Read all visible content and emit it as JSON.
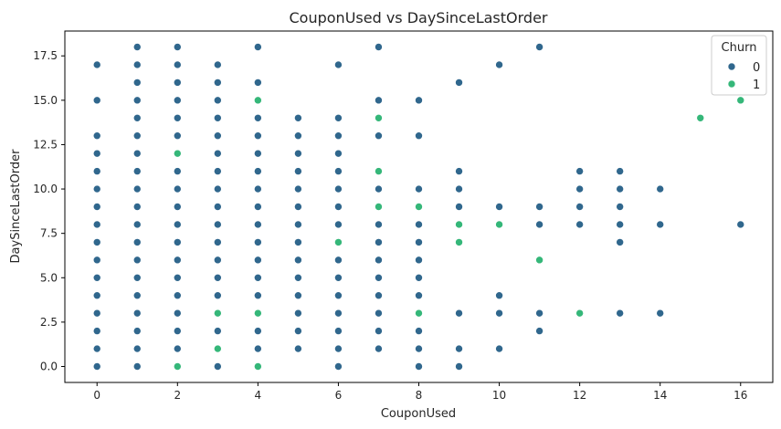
{
  "chart_data": {
    "type": "scatter",
    "title": "CouponUsed vs DaySinceLastOrder",
    "xlabel": "CouponUsed",
    "ylabel": "DaySinceLastOrder",
    "xlim": [
      -0.8,
      16.8
    ],
    "ylim": [
      -0.9,
      18.9
    ],
    "xticks": [
      0,
      2,
      4,
      6,
      8,
      10,
      12,
      14,
      16
    ],
    "yticks": [
      0.0,
      2.5,
      5.0,
      7.5,
      10.0,
      12.5,
      15.0,
      17.5
    ],
    "ytick_labels": [
      "0.0",
      "2.5",
      "5.0",
      "7.5",
      "10.0",
      "12.5",
      "15.0",
      "17.5"
    ],
    "grid": false,
    "legend": {
      "title": "Churn",
      "placement": "top-right"
    },
    "series": [
      {
        "name": "0",
        "color": "#30678d",
        "points": [
          [
            0,
            0
          ],
          [
            0,
            1
          ],
          [
            0,
            2
          ],
          [
            0,
            3
          ],
          [
            0,
            4
          ],
          [
            0,
            5
          ],
          [
            0,
            6
          ],
          [
            0,
            7
          ],
          [
            0,
            8
          ],
          [
            0,
            9
          ],
          [
            0,
            10
          ],
          [
            0,
            11
          ],
          [
            0,
            12
          ],
          [
            0,
            13
          ],
          [
            0,
            15
          ],
          [
            0,
            17
          ],
          [
            1,
            0
          ],
          [
            1,
            1
          ],
          [
            1,
            2
          ],
          [
            1,
            3
          ],
          [
            1,
            4
          ],
          [
            1,
            5
          ],
          [
            1,
            6
          ],
          [
            1,
            7
          ],
          [
            1,
            8
          ],
          [
            1,
            9
          ],
          [
            1,
            10
          ],
          [
            1,
            11
          ],
          [
            1,
            12
          ],
          [
            1,
            13
          ],
          [
            1,
            14
          ],
          [
            1,
            15
          ],
          [
            1,
            16
          ],
          [
            1,
            17
          ],
          [
            1,
            18
          ],
          [
            2,
            1
          ],
          [
            2,
            2
          ],
          [
            2,
            3
          ],
          [
            2,
            4
          ],
          [
            2,
            5
          ],
          [
            2,
            6
          ],
          [
            2,
            7
          ],
          [
            2,
            8
          ],
          [
            2,
            9
          ],
          [
            2,
            10
          ],
          [
            2,
            11
          ],
          [
            2,
            13
          ],
          [
            2,
            14
          ],
          [
            2,
            15
          ],
          [
            2,
            16
          ],
          [
            2,
            17
          ],
          [
            2,
            18
          ],
          [
            3,
            0
          ],
          [
            3,
            2
          ],
          [
            3,
            4
          ],
          [
            3,
            5
          ],
          [
            3,
            6
          ],
          [
            3,
            7
          ],
          [
            3,
            8
          ],
          [
            3,
            9
          ],
          [
            3,
            10
          ],
          [
            3,
            11
          ],
          [
            3,
            12
          ],
          [
            3,
            13
          ],
          [
            3,
            14
          ],
          [
            3,
            15
          ],
          [
            3,
            16
          ],
          [
            3,
            17
          ],
          [
            4,
            1
          ],
          [
            4,
            2
          ],
          [
            4,
            4
          ],
          [
            4,
            5
          ],
          [
            4,
            6
          ],
          [
            4,
            7
          ],
          [
            4,
            8
          ],
          [
            4,
            9
          ],
          [
            4,
            10
          ],
          [
            4,
            11
          ],
          [
            4,
            12
          ],
          [
            4,
            13
          ],
          [
            4,
            14
          ],
          [
            4,
            16
          ],
          [
            4,
            18
          ],
          [
            5,
            1
          ],
          [
            5,
            2
          ],
          [
            5,
            3
          ],
          [
            5,
            4
          ],
          [
            5,
            5
          ],
          [
            5,
            6
          ],
          [
            5,
            7
          ],
          [
            5,
            8
          ],
          [
            5,
            9
          ],
          [
            5,
            10
          ],
          [
            5,
            11
          ],
          [
            5,
            12
          ],
          [
            5,
            13
          ],
          [
            5,
            14
          ],
          [
            6,
            0
          ],
          [
            6,
            1
          ],
          [
            6,
            2
          ],
          [
            6,
            3
          ],
          [
            6,
            4
          ],
          [
            6,
            5
          ],
          [
            6,
            6
          ],
          [
            6,
            8
          ],
          [
            6,
            9
          ],
          [
            6,
            10
          ],
          [
            6,
            11
          ],
          [
            6,
            12
          ],
          [
            6,
            13
          ],
          [
            6,
            14
          ],
          [
            6,
            17
          ],
          [
            7,
            1
          ],
          [
            7,
            2
          ],
          [
            7,
            3
          ],
          [
            7,
            4
          ],
          [
            7,
            5
          ],
          [
            7,
            6
          ],
          [
            7,
            7
          ],
          [
            7,
            8
          ],
          [
            7,
            10
          ],
          [
            7,
            13
          ],
          [
            7,
            15
          ],
          [
            7,
            18
          ],
          [
            8,
            0
          ],
          [
            8,
            1
          ],
          [
            8,
            2
          ],
          [
            8,
            4
          ],
          [
            8,
            5
          ],
          [
            8,
            6
          ],
          [
            8,
            7
          ],
          [
            8,
            8
          ],
          [
            8,
            10
          ],
          [
            8,
            13
          ],
          [
            8,
            15
          ],
          [
            9,
            0
          ],
          [
            9,
            1
          ],
          [
            9,
            3
          ],
          [
            9,
            9
          ],
          [
            9,
            10
          ],
          [
            9,
            11
          ],
          [
            9,
            16
          ],
          [
            10,
            1
          ],
          [
            10,
            3
          ],
          [
            10,
            4
          ],
          [
            10,
            9
          ],
          [
            10,
            17
          ],
          [
            11,
            2
          ],
          [
            11,
            3
          ],
          [
            11,
            8
          ],
          [
            11,
            9
          ],
          [
            11,
            18
          ],
          [
            12,
            8
          ],
          [
            12,
            9
          ],
          [
            12,
            10
          ],
          [
            12,
            11
          ],
          [
            13,
            3
          ],
          [
            13,
            7
          ],
          [
            13,
            8
          ],
          [
            13,
            9
          ],
          [
            13,
            10
          ],
          [
            13,
            11
          ],
          [
            14,
            3
          ],
          [
            14,
            8
          ],
          [
            14,
            10
          ],
          [
            16,
            8
          ]
        ]
      },
      {
        "name": "1",
        "color": "#35b779",
        "points": [
          [
            2,
            0
          ],
          [
            2,
            12
          ],
          [
            3,
            1
          ],
          [
            3,
            3
          ],
          [
            4,
            0
          ],
          [
            4,
            3
          ],
          [
            4,
            15
          ],
          [
            6,
            7
          ],
          [
            7,
            9
          ],
          [
            7,
            11
          ],
          [
            7,
            14
          ],
          [
            8,
            3
          ],
          [
            8,
            9
          ],
          [
            9,
            7
          ],
          [
            9,
            8
          ],
          [
            10,
            8
          ],
          [
            11,
            6
          ],
          [
            12,
            3
          ],
          [
            15,
            14
          ],
          [
            16,
            15
          ]
        ]
      }
    ]
  }
}
